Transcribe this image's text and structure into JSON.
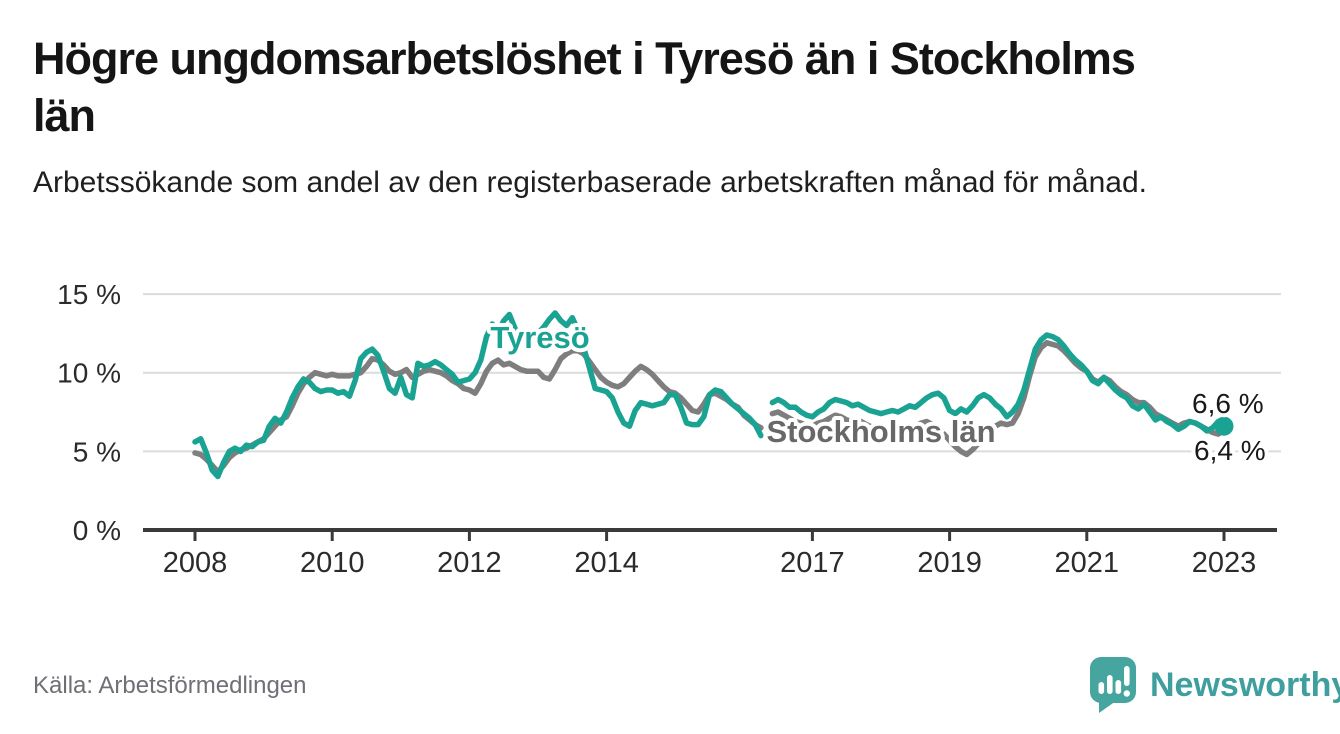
{
  "title_lines": [
    "Högre ungdomsarbetslöshet i Tyresö än i Stockholms",
    "län"
  ],
  "subtitle": "Arbetssökande som andel av den registerbaserade arbetskraften månad för månad.",
  "source": "Källa: Arbetsförmedlingen",
  "logo": {
    "text": "Newsworthy",
    "icon": "bar-chart-speech-bubble"
  },
  "colors": {
    "tyreso_line": "#1aa392",
    "stockholm_line": "#7e7e7e",
    "stockholm_label": "#686868",
    "grid": "#dcdcdc",
    "axis": "#3a3a3a",
    "tick_text": "#2b2b2b",
    "end_label_text": "#191919",
    "source_text": "#6f6f76",
    "brand_teal": "#3f9f9f",
    "background": "#ffffff"
  },
  "chart_data": {
    "type": "line",
    "title": "Högre ungdomsarbetslöshet i Tyresö än i Stockholms län",
    "subtitle": "Arbetssökande som andel av den registerbaserade arbetskraften månad för månad.",
    "unit": "%",
    "x_start": "2008-01",
    "x_end": "2023-01",
    "x_step": "1 month",
    "data_gap": "2016-05",
    "ylim": [
      0,
      15
    ],
    "yticks": [
      0,
      5,
      10,
      15
    ],
    "ytick_labels": [
      "0 %",
      "5 %",
      "10 %",
      "15 %"
    ],
    "xticks": [
      2008,
      2010,
      2012,
      2014,
      2017,
      2019,
      2021,
      2023
    ],
    "grid": "horizontal-only",
    "legend": "inline-labels",
    "series": [
      {
        "id": "tyreso",
        "name": "Tyresö",
        "color": "#1aa392",
        "end_label": "6,6 %",
        "end_value": 6.6,
        "values": [
          5.6,
          5.8,
          4.9,
          3.8,
          3.4,
          4.3,
          5.0,
          5.2,
          5.0,
          5.4,
          5.3,
          5.6,
          5.7,
          6.6,
          7.1,
          6.8,
          7.5,
          8.4,
          9.1,
          9.6,
          9.4,
          9.0,
          8.8,
          8.9,
          8.9,
          8.7,
          8.8,
          8.5,
          9.5,
          10.9,
          11.3,
          11.5,
          11.1,
          10.1,
          9.0,
          8.7,
          9.7,
          8.6,
          8.4,
          10.6,
          10.4,
          10.5,
          10.7,
          10.5,
          10.2,
          9.9,
          9.4,
          9.5,
          9.6,
          10.0,
          10.8,
          12.3,
          13.1,
          12.6,
          13.3,
          13.7,
          12.8,
          12.4,
          12.6,
          12.3,
          12.5,
          12.9,
          13.4,
          13.8,
          13.3,
          13.0,
          13.5,
          12.7,
          11.6,
          10.3,
          9.0,
          8.9,
          8.8,
          8.4,
          7.5,
          6.8,
          6.6,
          7.6,
          8.1,
          8.0,
          7.9,
          8.0,
          8.1,
          8.6,
          8.6,
          7.8,
          6.8,
          6.7,
          6.7,
          7.2,
          8.6,
          8.9,
          8.8,
          8.4,
          8.0,
          7.7,
          7.4,
          7.1,
          6.7,
          6.0,
          null,
          8.1,
          8.3,
          8.1,
          7.8,
          7.8,
          7.5,
          7.3,
          7.2,
          7.5,
          7.7,
          8.1,
          8.3,
          8.2,
          8.1,
          7.9,
          8.0,
          7.8,
          7.6,
          7.5,
          7.4,
          7.5,
          7.6,
          7.5,
          7.7,
          7.9,
          7.8,
          8.1,
          8.4,
          8.6,
          8.7,
          8.4,
          7.6,
          7.4,
          7.7,
          7.5,
          7.9,
          8.4,
          8.6,
          8.4,
          8.0,
          7.7,
          7.2,
          7.5,
          8.0,
          8.9,
          10.2,
          11.5,
          12.1,
          12.4,
          12.3,
          12.1,
          11.7,
          11.2,
          10.8,
          10.5,
          10.1,
          9.5,
          9.3,
          9.7,
          9.3,
          8.9,
          8.6,
          8.4,
          7.9,
          7.7,
          8.0,
          7.5,
          7.0,
          7.2,
          6.9,
          6.7,
          6.4,
          6.6,
          6.9,
          6.8,
          6.6,
          6.3,
          6.5,
          6.9,
          6.6
        ]
      },
      {
        "id": "stockholms-lan",
        "name": "Stockholms län",
        "color": "#7e7e7e",
        "end_label": "6,4 %",
        "end_value": 6.4,
        "values": [
          4.9,
          4.8,
          4.5,
          4.1,
          3.7,
          4.1,
          4.6,
          4.9,
          5.1,
          5.2,
          5.4,
          5.6,
          5.8,
          6.2,
          6.6,
          7.0,
          7.2,
          7.9,
          8.7,
          9.3,
          9.7,
          10.0,
          9.9,
          9.8,
          9.9,
          9.8,
          9.8,
          9.8,
          9.9,
          10.0,
          10.4,
          10.9,
          10.8,
          10.5,
          10.1,
          9.9,
          10.0,
          10.2,
          9.7,
          9.9,
          10.1,
          10.2,
          10.1,
          10.0,
          9.8,
          9.5,
          9.3,
          9.0,
          8.9,
          8.7,
          9.3,
          10.1,
          10.6,
          10.8,
          10.5,
          10.6,
          10.4,
          10.2,
          10.1,
          10.1,
          10.1,
          9.7,
          9.6,
          10.2,
          10.9,
          11.2,
          11.4,
          11.4,
          11.2,
          10.7,
          10.2,
          9.7,
          9.4,
          9.2,
          9.1,
          9.3,
          9.7,
          10.1,
          10.4,
          10.2,
          9.9,
          9.5,
          9.1,
          8.8,
          8.7,
          8.4,
          8.0,
          7.6,
          7.5,
          8.0,
          8.6,
          8.7,
          8.5,
          8.3,
          8.0,
          7.8,
          7.3,
          7.0,
          6.7,
          6.5,
          null,
          7.4,
          7.5,
          7.3,
          7.1,
          6.9,
          6.8,
          6.6,
          6.6,
          6.8,
          6.9,
          7.1,
          7.3,
          7.2,
          7.0,
          6.9,
          7.0,
          6.8,
          6.6,
          6.5,
          6.4,
          6.5,
          6.5,
          6.4,
          6.5,
          6.7,
          6.6,
          6.8,
          6.9,
          6.7,
          6.4,
          6.1,
          5.7,
          5.3,
          5.0,
          4.8,
          5.1,
          5.5,
          6.0,
          6.4,
          6.6,
          6.8,
          6.7,
          6.8,
          7.4,
          8.4,
          9.8,
          11.0,
          11.6,
          11.9,
          11.8,
          11.7,
          11.4,
          11.0,
          10.6,
          10.3,
          10.1,
          9.6,
          9.4,
          9.7,
          9.5,
          9.1,
          8.8,
          8.6,
          8.3,
          8.1,
          8.1,
          7.8,
          7.4,
          7.2,
          7.0,
          6.8,
          6.6,
          6.8,
          6.9,
          6.8,
          6.6,
          6.4,
          6.2,
          6.1,
          6.4
        ]
      }
    ]
  }
}
